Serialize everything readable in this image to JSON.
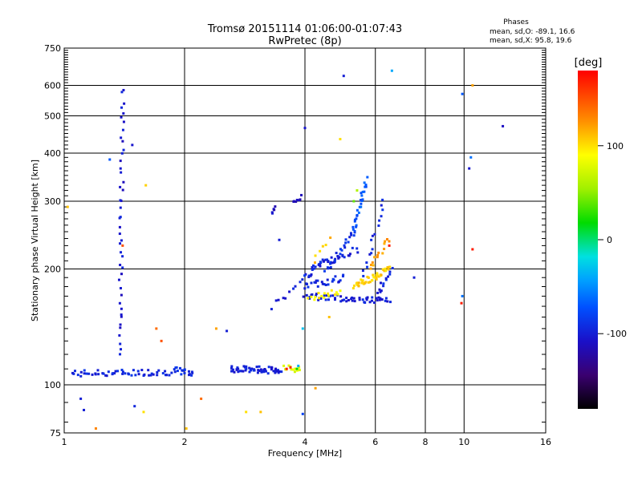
{
  "header": {
    "title_line1": "Tromsø 20151114 01:06:00-01:07:43",
    "title_line2": "RwPretec (8p)"
  },
  "stats": {
    "heading": "Phases",
    "line_o": "mean, sd,O: -89.1, 16.6",
    "line_x": "mean, sd,X:  95.8, 19.6"
  },
  "colorbar": {
    "unit": "[deg]",
    "range": [
      -180,
      180
    ],
    "ticks": [
      {
        "value": 100,
        "label": "100"
      },
      {
        "value": 0,
        "label": "0"
      },
      {
        "value": -100,
        "label": "-100"
      }
    ]
  },
  "chart_data": {
    "type": "scatter",
    "title": "Tromsø 20151114 01:06:00-01:07:43",
    "subtitle": "RwPretec (8p)",
    "xlabel": "Frequency [MHz]",
    "ylabel": "Stationary phase Virtual Height [km]",
    "x_scale": "log",
    "y_scale": "log",
    "xlim": [
      1,
      16
    ],
    "ylim": [
      75,
      750
    ],
    "x_ticks": [
      {
        "value": 1,
        "label": "1"
      },
      {
        "value": 2,
        "label": "2"
      },
      {
        "value": 4,
        "label": "4"
      },
      {
        "value": 6,
        "label": "6"
      },
      {
        "value": 8,
        "label": "8"
      },
      {
        "value": 10,
        "label": "10"
      },
      {
        "value": 16,
        "label": "16"
      }
    ],
    "y_ticks": [
      {
        "value": 75,
        "label": "75"
      },
      {
        "value": 100,
        "label": "100"
      },
      {
        "value": 200,
        "label": "200"
      },
      {
        "value": 300,
        "label": "300"
      },
      {
        "value": 400,
        "label": "400"
      },
      {
        "value": 500,
        "label": "500"
      },
      {
        "value": 600,
        "label": "600"
      },
      {
        "value": 750,
        "label": "750"
      }
    ],
    "grid_x": [
      2,
      4,
      6,
      8,
      10
    ],
    "grid_y": [
      100,
      200,
      300,
      400,
      500,
      600
    ],
    "color_by": "phase_deg",
    "series": [
      {
        "segments": [
          {
            "from": [
              1.05,
              107
            ],
            "to": [
              1.9,
              108
            ],
            "n": 55,
            "phase": -95
          },
          {
            "from": [
              1.9,
              109
            ],
            "to": [
              2.1,
              107
            ],
            "n": 16,
            "phase": -92
          },
          {
            "from": [
              2.6,
              110
            ],
            "to": [
              3.5,
              109
            ],
            "n": 55,
            "phase": -98
          },
          {
            "from": [
              1.38,
              120
            ],
            "to": [
              1.4,
              590
            ],
            "n": 45,
            "phase": -103
          },
          {
            "from": [
              3.3,
              280
            ],
            "to": [
              3.35,
              285
            ],
            "n": 5,
            "phase": -110
          },
          {
            "from": [
              3.75,
              300
            ],
            "to": [
              3.95,
              310
            ],
            "n": 7,
            "phase": -110
          },
          {
            "from": [
              3.3,
              160
            ],
            "to": [
              3.95,
              185
            ],
            "n": 10,
            "phase": -100
          },
          {
            "from": [
              4.0,
              190
            ],
            "to": [
              4.5,
              215
            ],
            "n": 20,
            "phase": -95
          },
          {
            "from": [
              4.0,
              170
            ],
            "to": [
              6.5,
              165
            ],
            "n": 55,
            "phase": -100
          },
          {
            "from": [
              4.0,
              180
            ],
            "to": [
              5.0,
              190
            ],
            "n": 25,
            "phase": -95
          },
          {
            "from": [
              4.5,
              195
            ],
            "to": [
              5.3,
              250
            ],
            "n": 25,
            "phase": -90
          },
          {
            "from": [
              5.3,
              250
            ],
            "to": [
              5.7,
              340
            ],
            "n": 28,
            "phase": -70
          },
          {
            "from": [
              5.6,
              190
            ],
            "to": [
              6.3,
              300
            ],
            "n": 16,
            "phase": -95
          },
          {
            "from": [
              4.4,
              205
            ],
            "to": [
              5.4,
              225
            ],
            "n": 20,
            "phase": -100
          },
          {
            "from": [
              6.0,
              170
            ],
            "to": [
              6.6,
              200
            ],
            "n": 14,
            "phase": -95
          }
        ]
      },
      {
        "segments": [
          {
            "from": [
              3.55,
              110
            ],
            "to": [
              3.9,
              110
            ],
            "n": 14,
            "phase": 80
          },
          {
            "from": [
              4.1,
              168
            ],
            "to": [
              4.9,
              175
            ],
            "n": 16,
            "phase": 92
          },
          {
            "from": [
              5.3,
              180
            ],
            "to": [
              6.5,
              200
            ],
            "n": 45,
            "phase": 105
          },
          {
            "from": [
              5.8,
              200
            ],
            "to": [
              6.5,
              240
            ],
            "n": 14,
            "phase": 120
          },
          {
            "from": [
              4.2,
              210
            ],
            "to": [
              4.6,
              240
            ],
            "n": 6,
            "phase": 110
          }
        ]
      }
    ],
    "points": [
      {
        "x": 1.3,
        "y": 385,
        "phase": -70
      },
      {
        "x": 1.48,
        "y": 420,
        "phase": -105
      },
      {
        "x": 1.6,
        "y": 330,
        "phase": 105
      },
      {
        "x": 1.02,
        "y": 290,
        "phase": 110
      },
      {
        "x": 1.4,
        "y": 230,
        "phase": 150
      },
      {
        "x": 1.7,
        "y": 140,
        "phase": 140
      },
      {
        "x": 1.75,
        "y": 130,
        "phase": 150
      },
      {
        "x": 2.4,
        "y": 140,
        "phase": 120
      },
      {
        "x": 2.55,
        "y": 138,
        "phase": -100
      },
      {
        "x": 1.1,
        "y": 92,
        "phase": -100
      },
      {
        "x": 1.12,
        "y": 86,
        "phase": -100
      },
      {
        "x": 1.2,
        "y": 77,
        "phase": 130
      },
      {
        "x": 1.5,
        "y": 88,
        "phase": -95
      },
      {
        "x": 1.58,
        "y": 85,
        "phase": 100
      },
      {
        "x": 2.02,
        "y": 77,
        "phase": 110
      },
      {
        "x": 2.2,
        "y": 92,
        "phase": 140
      },
      {
        "x": 2.85,
        "y": 85,
        "phase": 100
      },
      {
        "x": 3.1,
        "y": 85,
        "phase": 110
      },
      {
        "x": 3.95,
        "y": 84,
        "phase": -80
      },
      {
        "x": 4.25,
        "y": 98,
        "phase": 120
      },
      {
        "x": 5.0,
        "y": 635,
        "phase": -100
      },
      {
        "x": 6.6,
        "y": 655,
        "phase": -40
      },
      {
        "x": 9.9,
        "y": 570,
        "phase": -70
      },
      {
        "x": 10.5,
        "y": 600,
        "phase": 120
      },
      {
        "x": 10.3,
        "y": 365,
        "phase": -105
      },
      {
        "x": 10.4,
        "y": 390,
        "phase": -60
      },
      {
        "x": 12.5,
        "y": 470,
        "phase": -110
      },
      {
        "x": 10.5,
        "y": 225,
        "phase": 170
      },
      {
        "x": 7.5,
        "y": 190,
        "phase": -100
      },
      {
        "x": 9.9,
        "y": 170,
        "phase": -60
      },
      {
        "x": 9.85,
        "y": 163,
        "phase": 170
      },
      {
        "x": 4.0,
        "y": 465,
        "phase": -105
      },
      {
        "x": 4.9,
        "y": 435,
        "phase": 100
      },
      {
        "x": 3.45,
        "y": 238,
        "phase": -100
      },
      {
        "x": 3.6,
        "y": 110,
        "phase": 170
      },
      {
        "x": 3.68,
        "y": 111,
        "phase": 165
      },
      {
        "x": 3.82,
        "y": 110,
        "phase": 20
      },
      {
        "x": 3.85,
        "y": 112,
        "phase": -40
      },
      {
        "x": 6.5,
        "y": 230,
        "phase": 170
      },
      {
        "x": 5.4,
        "y": 320,
        "phase": 60
      },
      {
        "x": 5.3,
        "y": 300,
        "phase": 40
      },
      {
        "x": 4.6,
        "y": 150,
        "phase": 110
      },
      {
        "x": 3.95,
        "y": 140,
        "phase": -30
      }
    ]
  }
}
